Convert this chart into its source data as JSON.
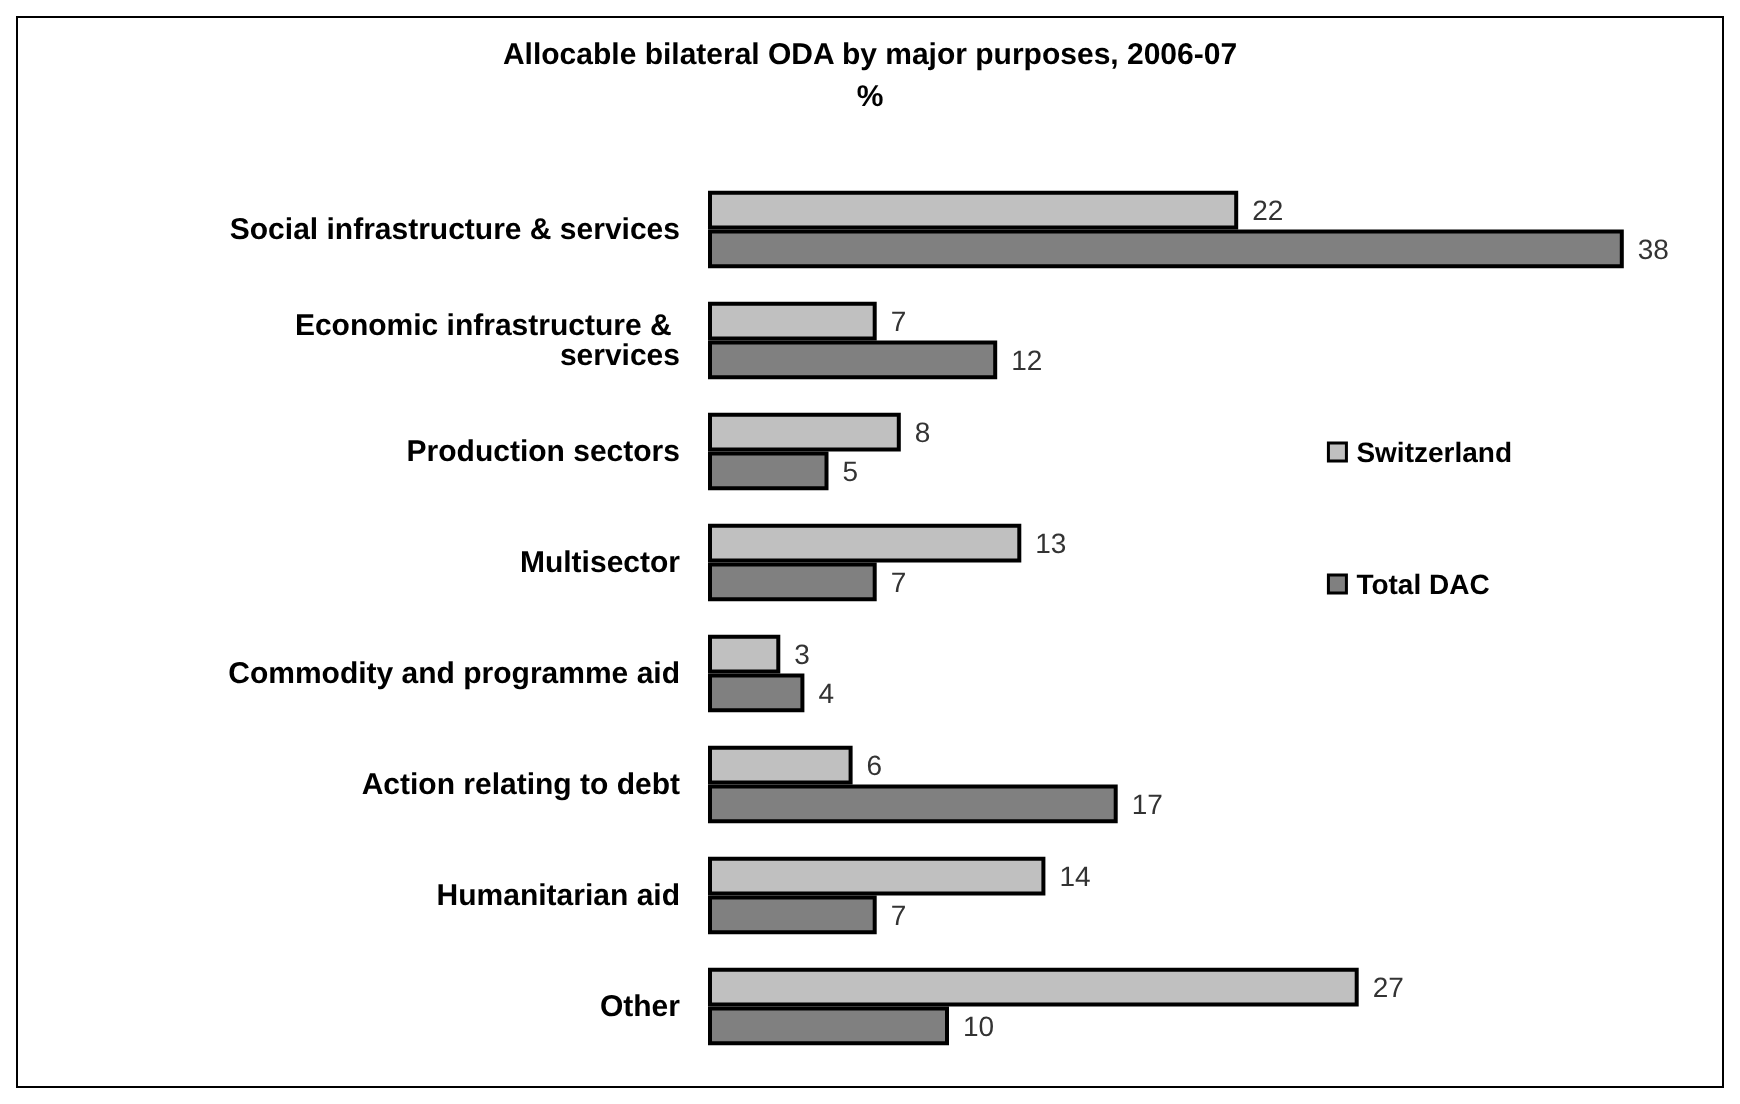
{
  "chart_data": {
    "type": "bar",
    "orientation": "horizontal",
    "title": "Allocable bilateral ODA by major purposes, 2006-07",
    "subtitle": "%",
    "categories": [
      "Social infrastructure & services",
      "Economic infrastructure & services",
      "Production sectors",
      "Multisector",
      "Commodity and programme aid",
      "Action relating to debt",
      "Humanitarian aid",
      "Other"
    ],
    "series": [
      {
        "name": "Switzerland",
        "color": "#c0c0c0",
        "values": [
          22,
          7,
          8,
          13,
          3,
          6,
          14,
          27
        ]
      },
      {
        "name": "Total DAC",
        "color": "#808080",
        "values": [
          38,
          12,
          5,
          7,
          4,
          17,
          7,
          10
        ]
      }
    ],
    "data_labels": true,
    "legend": "right",
    "tick_labels": "y"
  }
}
